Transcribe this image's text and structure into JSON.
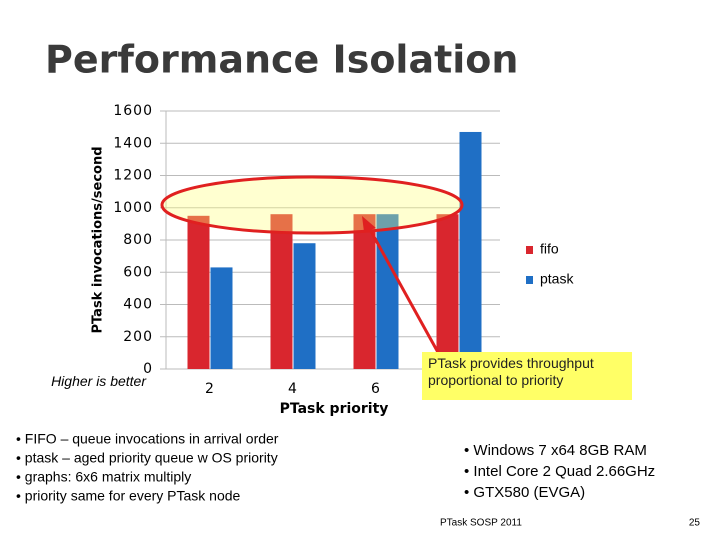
{
  "chart_data": {
    "type": "bar",
    "title": "Performance Isolation",
    "y_label": "PTask invocations/second",
    "x_label": "PTask priority",
    "categories": [
      "2",
      "4",
      "6",
      null
    ],
    "series": [
      {
        "name": "fifo",
        "color": "#d9262e",
        "values": [
          950,
          960,
          960,
          960
        ]
      },
      {
        "name": "ptask",
        "color": "#1f6fc5",
        "values": [
          630,
          780,
          960,
          1470
        ]
      }
    ],
    "ylim": [
      0,
      1600
    ],
    "yticks": [
      0,
      200,
      400,
      600,
      800,
      1000,
      1200,
      1400,
      1600
    ],
    "grid": true,
    "legend": "right"
  },
  "slide": {
    "axis_note": "Higher is better",
    "callout": "PTask provides throughput proportional to priority",
    "left_bullets": [
      "• FIFO – queue invocations in arrival order",
      "• ptask – aged priority queue w OS priority",
      "• graphs: 6x6 matrix multiply",
      "• priority same for every PTask node"
    ],
    "right_bullets": [
      "• Windows 7 x64 8GB RAM",
      "• Intel Core 2 Quad 2.66GHz",
      "• GTX580 (EVGA)"
    ],
    "footer": "PTask SOSP 2011",
    "page": "25"
  }
}
